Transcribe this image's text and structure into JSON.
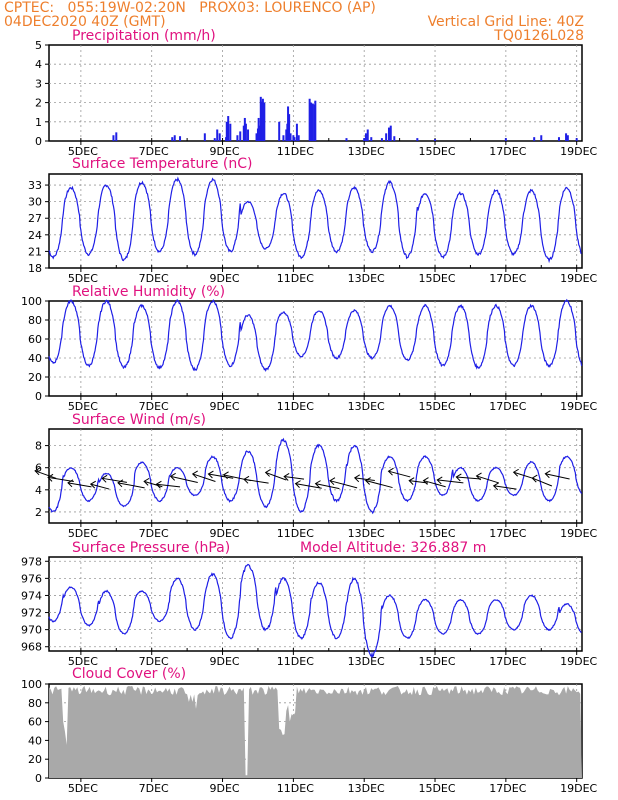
{
  "header": {
    "left_line1": "CPTEC:   055:19W-02:20N   PROX03: LOURENCO (AP)",
    "left_line2": "04DEC2020 40Z (GMT)",
    "right_line1": "Vertical Grid Line: 40Z",
    "right_line2": "TQ0126L028",
    "model_altitude": "Model Altitude: 326.887 m"
  },
  "colors": {
    "header": "#ee7f2d",
    "title": "#e0117f",
    "series": "#1f1fe6",
    "cloud": "#a9a9a9",
    "wind_arrow": "#000000",
    "grid": "#9a9a9a"
  },
  "x_ticks": [
    "5DEC",
    "7DEC",
    "9DEC",
    "11DEC",
    "13DEC",
    "15DEC",
    "17DEC",
    "19DEC"
  ],
  "chart_data": [
    {
      "type": "bar",
      "title": "Precipitation (mm/h)",
      "ylim": [
        0,
        5
      ],
      "yticks": [
        0,
        1,
        2,
        3,
        4,
        5
      ],
      "bars": [
        [
          5.92,
          0.3
        ],
        [
          6.0,
          0.45
        ],
        [
          7.58,
          0.2
        ],
        [
          7.65,
          0.3
        ],
        [
          7.8,
          0.25
        ],
        [
          8.5,
          0.4
        ],
        [
          8.78,
          0.15
        ],
        [
          8.85,
          0.6
        ],
        [
          8.92,
          0.4
        ],
        [
          9.1,
          0.2
        ],
        [
          9.12,
          1.0
        ],
        [
          9.16,
          1.3
        ],
        [
          9.22,
          0.9
        ],
        [
          9.42,
          0.3
        ],
        [
          9.5,
          0.5
        ],
        [
          9.6,
          0.8
        ],
        [
          9.63,
          1.2
        ],
        [
          9.66,
          0.9
        ],
        [
          9.72,
          0.6
        ],
        [
          9.96,
          0.4
        ],
        [
          10.0,
          0.65
        ],
        [
          10.02,
          1.2
        ],
        [
          10.06,
          0.8
        ],
        [
          10.12,
          0.5
        ],
        [
          10.72,
          0.3
        ],
        [
          10.8,
          0.6
        ],
        [
          10.83,
          0.9
        ],
        [
          10.85,
          1.8
        ],
        [
          10.88,
          1.4
        ],
        [
          10.92,
          0.4
        ],
        [
          11.0,
          0.3
        ],
        [
          11.03,
          0.2
        ],
        [
          12.5,
          0.15
        ],
        [
          13.0,
          0.15
        ],
        [
          13.05,
          0.4
        ],
        [
          13.1,
          0.6
        ],
        [
          13.2,
          0.2
        ],
        [
          13.5,
          0.15
        ],
        [
          14.5,
          0.15
        ],
        [
          15.0,
          0.1
        ],
        [
          17.0,
          0.15
        ],
        [
          17.8,
          0.2
        ],
        [
          18.0,
          0.3
        ],
        [
          18.5,
          0.2
        ],
        [
          19.0,
          0.15
        ]
      ],
      "tall_bars": [
        [
          10.08,
          2.3
        ],
        [
          10.1,
          2.05
        ],
        [
          10.14,
          2.2
        ],
        [
          10.18,
          2.0
        ],
        [
          10.6,
          1.0
        ],
        [
          11.46,
          2.2
        ],
        [
          11.5,
          2.0
        ],
        [
          11.55,
          1.95
        ],
        [
          11.6,
          1.9
        ],
        [
          11.62,
          2.1
        ],
        [
          11.1,
          0.9
        ],
        [
          11.15,
          0.3
        ],
        [
          13.7,
          0.7
        ],
        [
          13.75,
          0.8
        ],
        [
          13.62,
          0.4
        ],
        [
          13.85,
          0.25
        ],
        [
          18.7,
          0.4
        ],
        [
          18.75,
          0.3
        ]
      ]
    },
    {
      "type": "line",
      "title": "Surface Temperature (nC)",
      "ylim": [
        18,
        35
      ],
      "yticks": [
        18,
        21,
        24,
        27,
        30,
        33
      ],
      "maxima": [
        32,
        32.5,
        33,
        33.5,
        34,
        34,
        30,
        31.5,
        32,
        32.5,
        33.5,
        31.5,
        31.5,
        32,
        32,
        32.5,
        33.5,
        33
      ],
      "minima": [
        20,
        20.5,
        19.5,
        21,
        20.5,
        21,
        21.5,
        20,
        21,
        21,
        20,
        20,
        20.5,
        20.5,
        19.5,
        20,
        19,
        19.5
      ]
    },
    {
      "type": "line",
      "title": "Relative Humidity (%)",
      "ylim": [
        0,
        100
      ],
      "yticks": [
        0,
        20,
        40,
        60,
        80,
        100
      ],
      "maxima": [
        100,
        100,
        100,
        95,
        100,
        100,
        85,
        88,
        90,
        90,
        95,
        95,
        95,
        95,
        95,
        100,
        100,
        100
      ],
      "minima": [
        35,
        32,
        30,
        30,
        28,
        32,
        28,
        42,
        40,
        40,
        38,
        32,
        30,
        32,
        32,
        30,
        30,
        28
      ]
    },
    {
      "type": "line",
      "title": "Surface Wind (m/s)",
      "ylim": [
        1,
        9.5
      ],
      "yticks": [
        2,
        4,
        6,
        8
      ],
      "maxima": [
        7,
        6,
        5.5,
        6.5,
        6,
        7,
        7.5,
        8.5,
        8,
        8,
        7,
        7,
        6,
        6,
        6.5,
        7,
        6,
        6
      ],
      "minima": [
        2,
        3,
        2.5,
        3,
        3.5,
        3,
        2.5,
        2,
        3,
        2,
        3,
        3.5,
        3,
        3.5,
        3,
        3.5,
        3.5,
        3.5
      ]
    },
    {
      "type": "line",
      "title": "Surface Pressure (hPa)",
      "ylim": [
        967.5,
        978.5
      ],
      "yticks": [
        968,
        970,
        972,
        974,
        976,
        978
      ],
      "maxima": [
        975.5,
        975,
        974.5,
        974.5,
        976,
        976.5,
        977.5,
        976,
        975.5,
        976,
        974,
        973.5,
        973.5,
        973.5,
        974,
        973,
        973,
        972.5
      ],
      "minima": [
        971,
        970.5,
        969.5,
        971,
        970,
        969,
        970,
        969,
        969,
        967,
        969,
        969.5,
        969.5,
        970,
        970,
        969.5,
        969,
        968
      ]
    },
    {
      "type": "area",
      "title": "Cloud Cover (%)",
      "ylim": [
        0,
        100
      ],
      "yticks": [
        0,
        20,
        40,
        60,
        80,
        100
      ],
      "level": 93
    }
  ]
}
